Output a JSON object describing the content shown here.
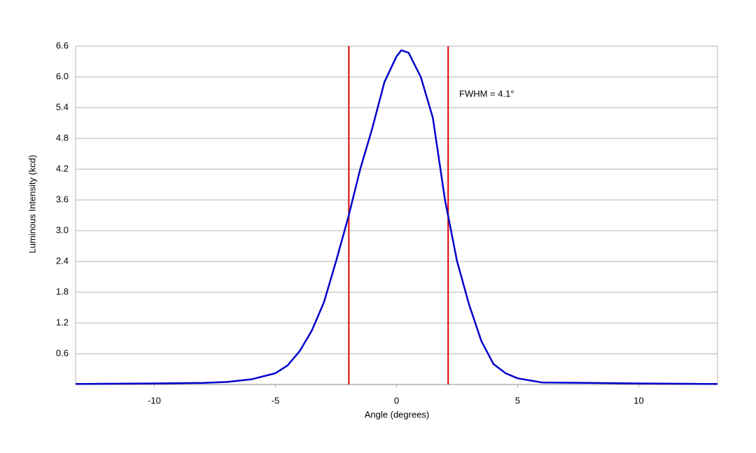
{
  "chart_data": {
    "type": "line",
    "x_label": "Angle (degrees)",
    "y_label": "Luminous Intensity (kcd)",
    "annotation": "FWHM = 4.1°",
    "xlim": [
      -13.25,
      13.25
    ],
    "ylim": [
      0,
      6.6
    ],
    "xticks": [
      -10,
      -5,
      0,
      5,
      10
    ],
    "yticks": [
      0.6,
      1.2,
      1.8,
      2.4,
      {
        "value": 3,
        "label": "3.0"
      },
      3.6,
      4.2,
      4.8,
      5.4,
      {
        "value": 6,
        "label": "6.0"
      },
      6.6
    ],
    "grid": true,
    "vlines": {
      "color": "#dd0000",
      "values": [
        -1.97,
        2.13
      ]
    },
    "x": [
      -13.25,
      -10,
      -8,
      -7,
      -6,
      -5,
      -4.5,
      -4,
      -3.5,
      -3,
      -2.5,
      -2,
      -1.5,
      -1,
      -0.5,
      0,
      0.2,
      0.5,
      1,
      1.5,
      2,
      2.5,
      3,
      3.5,
      4,
      4.5,
      5,
      6,
      8,
      10,
      13.25
    ],
    "series": [
      {
        "color": "#0000cc",
        "values": [
          0.01,
          0.02,
          0.03,
          0.05,
          0.1,
          0.22,
          0.37,
          0.65,
          1.05,
          1.6,
          2.4,
          3.25,
          4.2,
          5.0,
          5.9,
          6.4,
          6.52,
          6.47,
          6.0,
          5.2,
          3.6,
          2.4,
          1.55,
          0.85,
          0.4,
          0.22,
          0.12,
          0.04,
          0.03,
          0.02,
          0.01
        ]
      }
    ]
  }
}
